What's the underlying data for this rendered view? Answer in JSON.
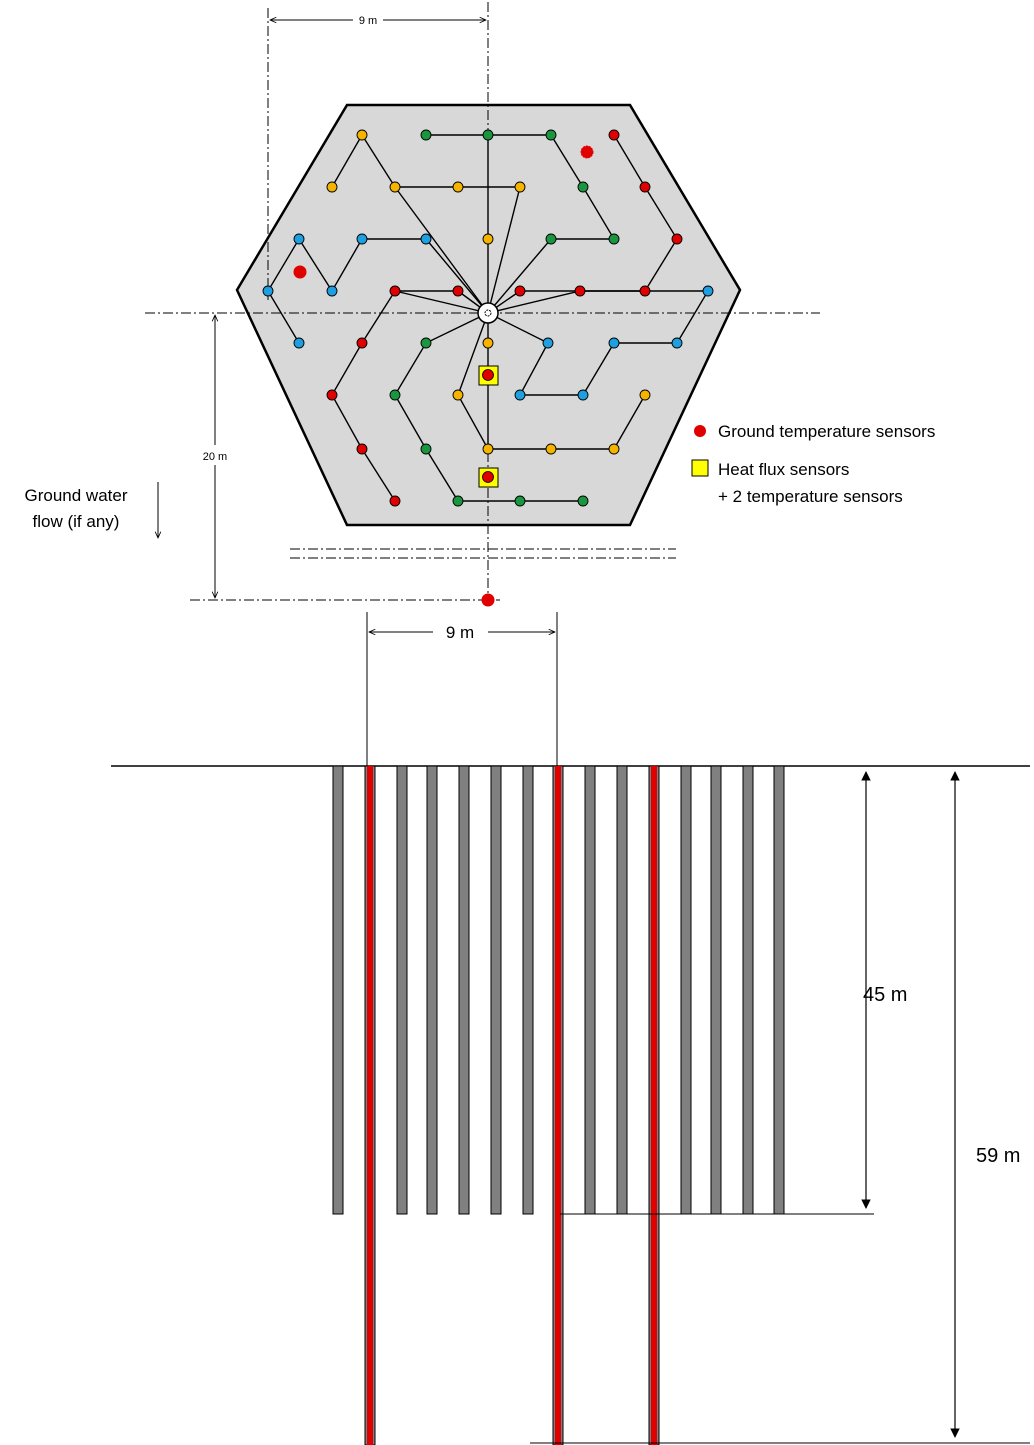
{
  "labels": {
    "top_dim": "9 m",
    "side_dim": "20 m",
    "mid_dim": "9 m",
    "depth_short": "45 m",
    "depth_long": "59 m",
    "groundwater_line1": "Ground water",
    "groundwater_line2": "flow (if any)"
  },
  "legend": {
    "temp": "Ground temperature sensors",
    "flux_line1": "Heat flux sensors",
    "flux_line2": "+ 2 temperature sensors"
  },
  "colors": {
    "red": "#e00000",
    "green": "#1a9641",
    "orange": "#f5b400",
    "blue": "#1ea0e0",
    "yellow": "#ffff00",
    "hexagon_fill": "#d8d8d8",
    "pile_gray": "#808080"
  },
  "sensors": {
    "surface_temperature_sensors": 3,
    "heat_flux_stations": 2
  },
  "piles": {
    "count": 15,
    "instrumented_deep_count": 3
  }
}
